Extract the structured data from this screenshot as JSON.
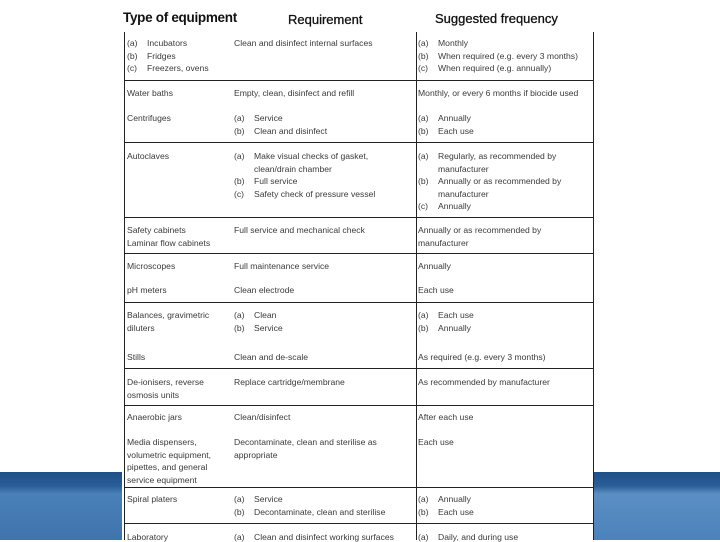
{
  "headers": {
    "equipment": "Type of equipment",
    "requirement": "Requirement",
    "frequency": "Suggested frequency"
  },
  "items": [
    {
      "equipment": [
        "(a) Incubators",
        "(b) Fridges",
        "(c) Freezers, ovens"
      ],
      "requirement": [
        "Clean and disinfect internal surfaces"
      ],
      "frequency": [
        "(a) Monthly",
        "(b) When required (e.g. every 3 months)",
        "(c) When required (e.g. annually)"
      ]
    },
    {
      "equipment": [
        "Water baths"
      ],
      "requirement": [
        "Empty, clean, disinfect and refill"
      ],
      "frequency": [
        "Monthly, or every 6 months if biocide used"
      ]
    },
    {
      "equipment": [
        "Centrifuges"
      ],
      "requirement": [
        "(a) Service",
        "(b) Clean and disinfect"
      ],
      "frequency": [
        "(a) Annually",
        "(b) Each use"
      ]
    },
    {
      "equipment": [
        "Autoclaves"
      ],
      "requirement": [
        "(a) Make visual checks of gasket,",
        "~ clean/drain chamber",
        "(b) Full service",
        "(c) Safety check of pressure vessel"
      ],
      "frequency": [
        "(a) Regularly, as recommended by",
        "~ manufacturer",
        "(b) Annually or as recommended by",
        "~ manufacturer",
        "(c) Annually"
      ]
    },
    {
      "equipment": [
        "Safety cabinets",
        "Laminar flow cabinets"
      ],
      "requirement": [
        "Full service and mechanical check"
      ],
      "frequency": [
        "Annually or as recommended by",
        "manufacturer"
      ]
    },
    {
      "equipment": [
        "Microscopes"
      ],
      "requirement": [
        "Full maintenance service"
      ],
      "frequency": [
        "Annually"
      ]
    },
    {
      "equipment": [
        "pH meters"
      ],
      "requirement": [
        "Clean electrode"
      ],
      "frequency": [
        "Each use"
      ]
    },
    {
      "equipment": [
        "Balances, gravimetric",
        "diluters"
      ],
      "requirement": [
        "(a) Clean",
        "(b) Service"
      ],
      "frequency": [
        "(a) Each use",
        "(b) Annually"
      ]
    },
    {
      "equipment": [
        "Stills"
      ],
      "requirement": [
        "Clean and de-scale"
      ],
      "frequency": [
        "As required (e.g. every 3 months)"
      ]
    },
    {
      "equipment": [
        "De-ionisers, reverse",
        "osmosis units"
      ],
      "requirement": [
        "Replace cartridge/membrane"
      ],
      "frequency": [
        "As recommended by manufacturer"
      ]
    },
    {
      "equipment": [
        "Anaerobic jars"
      ],
      "requirement": [
        "Clean/disinfect"
      ],
      "frequency": [
        "After each use"
      ]
    },
    {
      "equipment": [
        "Media dispensers,",
        "volumetric equipment,",
        "pipettes, and general",
        "service equipment"
      ],
      "requirement": [
        "Decontaminate, clean and sterilise as",
        "appropriate"
      ],
      "frequency": [
        "Each use"
      ]
    },
    {
      "equipment": [
        "Spiral platers"
      ],
      "requirement": [
        "(a) Service",
        "(b) Decontaminate, clean and sterilise"
      ],
      "frequency": [
        "(a) Annually",
        "(b) Each use"
      ]
    },
    {
      "equipment": [
        "Laboratory"
      ],
      "requirement": [
        "(a) Clean and disinfect working surfaces"
      ],
      "frequency": [
        "(a) Daily, and during use"
      ]
    }
  ]
}
